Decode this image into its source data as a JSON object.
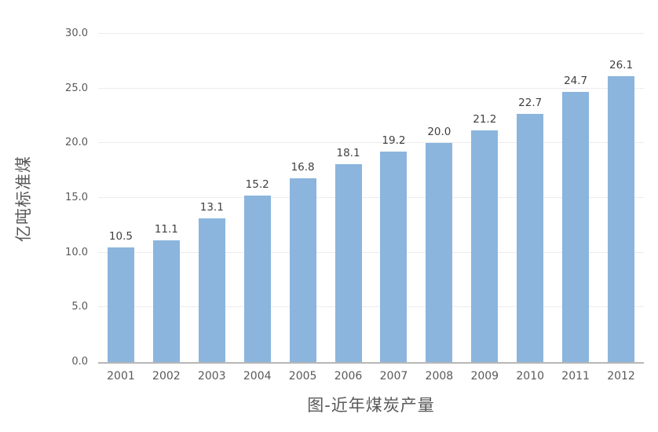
{
  "chart_data": {
    "type": "bar",
    "title": "图-近年煤炭产量",
    "title_position": "bottom",
    "ylabel": "亿吨标准煤",
    "xlabel": "",
    "categories": [
      "2001",
      "2002",
      "2003",
      "2004",
      "2005",
      "2006",
      "2007",
      "2008",
      "2009",
      "2010",
      "2011",
      "2012"
    ],
    "values": [
      10.5,
      11.1,
      13.1,
      15.2,
      16.8,
      18.1,
      19.2,
      20.0,
      21.2,
      22.7,
      24.7,
      26.1
    ],
    "value_labels": [
      "10.5",
      "11.1",
      "13.1",
      "15.2",
      "16.8",
      "18.1",
      "19.2",
      "20.0",
      "21.2",
      "22.7",
      "24.7",
      "26.1"
    ],
    "ylim": [
      0,
      30
    ],
    "ytick_step": 5,
    "ytick_labels": [
      "0.0",
      "5.0",
      "10.0",
      "15.0",
      "20.0",
      "25.0",
      "30.0"
    ],
    "grid": true,
    "legend": "none",
    "colors": {
      "bar": "#8bb5dd",
      "gridline": "#ececec",
      "axis_line": "#b7b7b7",
      "tick_text": "#595959",
      "value_text": "#404040",
      "title_text": "#595959"
    }
  }
}
